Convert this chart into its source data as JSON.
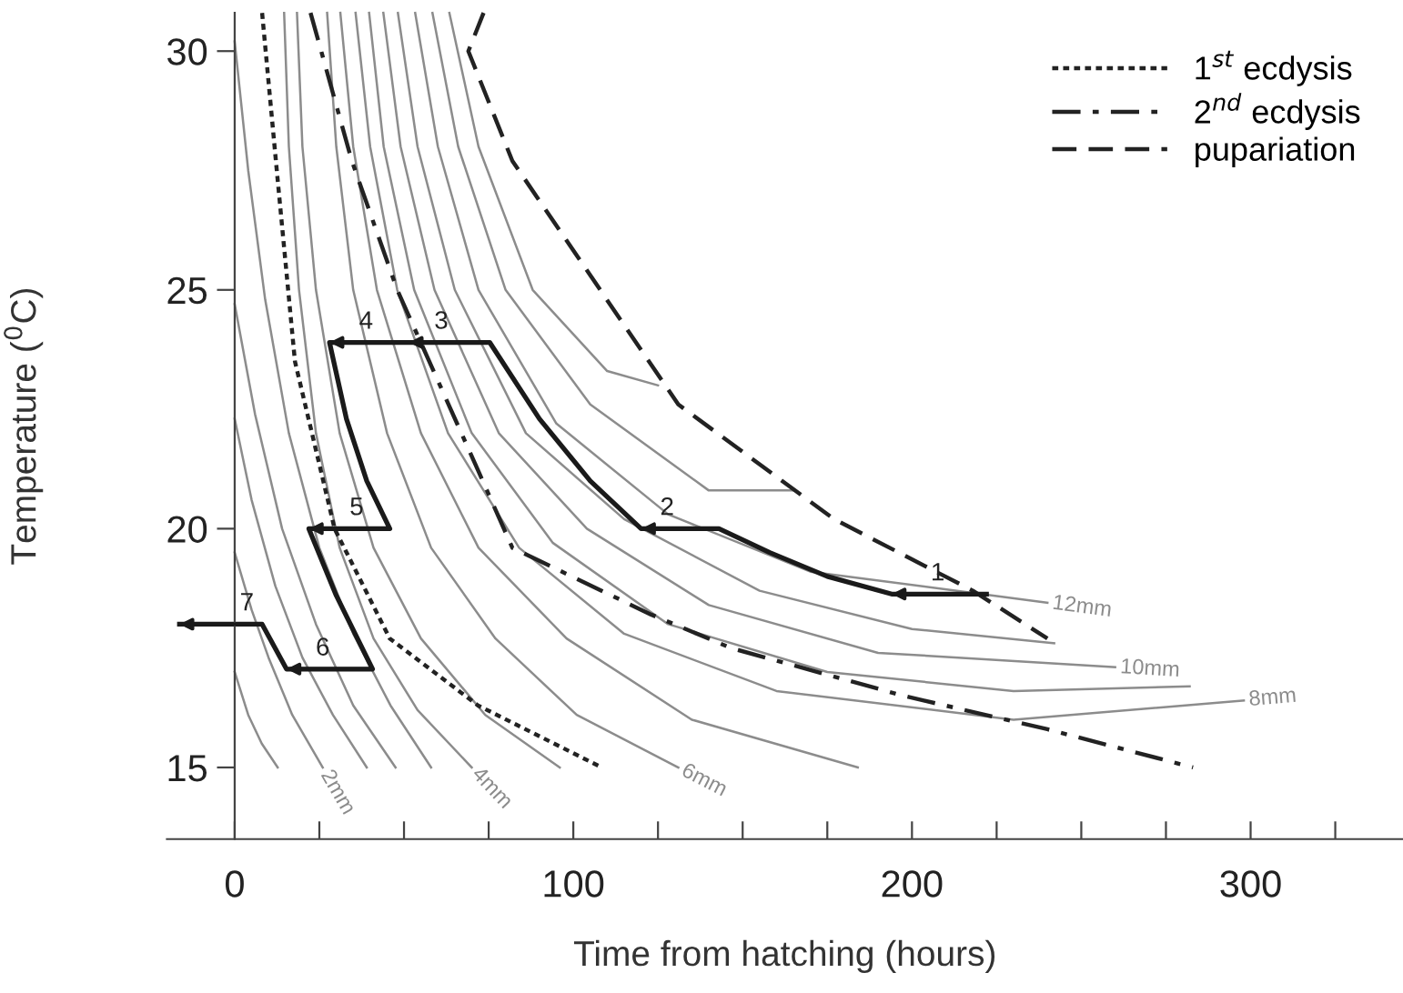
{
  "chart_data": {
    "type": "line",
    "xlabel": "Time from hatching (hours)",
    "ylabel": "Temperature ($^{0}$C)",
    "xlim": [
      -20,
      345
    ],
    "ylim": [
      13.5,
      30.8
    ],
    "xticks": [
      0,
      {
        "value": 25,
        "label": null
      },
      {
        "value": 50,
        "label": null
      },
      {
        "value": 75,
        "label": null
      },
      100,
      {
        "value": 125,
        "label": null
      },
      {
        "value": 150,
        "label": null
      },
      {
        "value": 175,
        "label": null
      },
      200,
      {
        "value": 225,
        "label": null
      },
      {
        "value": 250,
        "label": null
      },
      {
        "value": 275,
        "label": null
      },
      300,
      {
        "value": 325,
        "label": null
      }
    ],
    "yticks": [
      15,
      20,
      25,
      30
    ],
    "grid": false,
    "legend": "top right",
    "marker": "none",
    "series": [
      {
        "color": "#8c8c8c",
        "line_style": "solid",
        "x": [
          0,
          4,
          8,
          12.7
        ],
        "values": [
          17.0,
          16.1,
          15.5,
          15.0
        ]
      },
      {
        "name": "2mm",
        "color": "#8c8c8c",
        "line_style": "solid",
        "x": [
          0,
          5,
          10,
          17,
          26
        ],
        "values": [
          19.5,
          18.3,
          17.3,
          16.1,
          15.0
        ]
      },
      {
        "color": "#8c8c8c",
        "line_style": "solid",
        "x": [
          0,
          5,
          12,
          20,
          29,
          39
        ],
        "values": [
          22.3,
          20.6,
          18.8,
          17.3,
          16.1,
          15.0
        ]
      },
      {
        "color": "#8c8c8c",
        "line_style": "solid",
        "x": [
          0,
          6,
          14,
          24,
          35,
          47.5
        ],
        "values": [
          24.7,
          22.4,
          20.0,
          18.0,
          16.3,
          15.0
        ]
      },
      {
        "color": "#8c8c8c",
        "line_style": "solid",
        "x": [
          0,
          4,
          9,
          16,
          25,
          35,
          46,
          58
        ],
        "values": [
          30.2,
          27.5,
          24.8,
          22.0,
          19.6,
          17.8,
          16.3,
          15.0
        ]
      },
      {
        "name": "4mm",
        "color": "#8c8c8c",
        "line_style": "solid",
        "x": [
          14.6,
          16,
          19,
          24,
          31,
          41,
          54,
          70
        ],
        "values": [
          30.8,
          28,
          25,
          22,
          19.6,
          17.7,
          16.2,
          15.0
        ]
      },
      {
        "color": "#8c8c8c",
        "line_style": "solid",
        "x": [
          18.4,
          20,
          24,
          31,
          41,
          55,
          74,
          96
        ],
        "values": [
          30.8,
          28,
          25,
          22,
          19.6,
          17.7,
          16.1,
          15.0
        ]
      },
      {
        "name": "6mm",
        "color": "#8c8c8c",
        "line_style": "solid",
        "x": [
          27.3,
          30,
          35,
          45,
          58,
          77,
          101,
          131
        ],
        "values": [
          30.8,
          28,
          25,
          22,
          19.6,
          17.7,
          16.1,
          15.0
        ]
      },
      {
        "color": "#8c8c8c",
        "line_style": "solid",
        "x": [
          31.2,
          35,
          42,
          55,
          72,
          98,
          135,
          184
        ],
        "values": [
          30.8,
          28,
          25,
          22,
          19.6,
          17.7,
          16.0,
          15.0
        ]
      },
      {
        "name": "8mm",
        "color": "#8c8c8c",
        "line_style": "solid",
        "x": [
          35.7,
          40,
          48,
          63,
          84,
          115,
          160,
          230,
          298
        ],
        "values": [
          30.8,
          28,
          25,
          22,
          19.6,
          17.8,
          16.6,
          16.0,
          16.4
        ]
      },
      {
        "color": "#8c8c8c",
        "line_style": "solid",
        "x": [
          39.7,
          44,
          53,
          70,
          94,
          128,
          175,
          230,
          282
        ],
        "values": [
          30.8,
          28,
          25,
          22,
          19.7,
          18.0,
          17.0,
          16.6,
          16.7
        ]
      },
      {
        "name": "10mm",
        "color": "#8c8c8c",
        "line_style": "solid",
        "x": [
          43.9,
          49,
          59,
          78,
          104,
          140,
          190,
          260
        ],
        "values": [
          30.8,
          28,
          25,
          22,
          20,
          18.4,
          17.4,
          17.1
        ]
      },
      {
        "color": "#8c8c8c",
        "line_style": "solid",
        "x": [
          48.2,
          54,
          65,
          86,
          115,
          155,
          200,
          242
        ],
        "values": [
          30.8,
          28,
          25,
          22,
          20.2,
          18.7,
          17.9,
          17.6
        ]
      },
      {
        "name": "12mm",
        "color": "#8c8c8c",
        "line_style": "solid",
        "x": [
          53.3,
          60,
          72,
          95,
          128,
          170,
          240
        ],
        "values": [
          30.8,
          28,
          25,
          22.2,
          20.3,
          19.1,
          18.45
        ]
      },
      {
        "color": "#8c8c8c",
        "line_style": "solid",
        "x": [
          58.4,
          66,
          80,
          105,
          140,
          165
        ],
        "values": [
          30.8,
          28,
          25,
          22.6,
          20.8,
          20.8
        ]
      },
      {
        "color": "#8c8c8c",
        "line_style": "solid",
        "x": [
          63.4,
          72,
          88,
          110,
          125
        ],
        "values": [
          30.8,
          28,
          25,
          23.3,
          23.0
        ]
      },
      {
        "name": "1$^{st}$ ecdysis",
        "color": "#222222",
        "line_style": "dotted",
        "x": [
          8.1,
          12.7,
          17.8,
          29.5,
          45.8,
          71.8,
          108.4
        ],
        "values": [
          30.8,
          27.3,
          23.5,
          20.0,
          17.7,
          16.3,
          15.0
        ]
      },
      {
        "name": "2$^{nd}$ ecdysis",
        "color": "#222222",
        "line_style": "dashdot",
        "x": [
          22.4,
          34.6,
          48,
          72,
          82,
          123,
          146.6,
          197.5,
          240,
          283
        ],
        "values": [
          30.8,
          27.7,
          25.0,
          21.2,
          19.6,
          18.2,
          17.5,
          16.5,
          15.8,
          15.0
        ]
      },
      {
        "name": "pupariation",
        "color": "#222222",
        "line_style": "dashed",
        "x": [
          73.5,
          69,
          82,
          131,
          177,
          218,
          240
        ],
        "values": [
          30.8,
          30.0,
          27.7,
          22.6,
          20.2,
          18.7,
          17.7
        ]
      },
      {
        "color": "#1a1a1a",
        "line_style": "solid",
        "x": [
          222,
          194,
          175,
          158,
          143,
          120,
          105,
          90,
          75.3,
          51.4,
          28,
          33,
          39,
          45.8,
          21.9,
          30,
          40.7,
          15.3,
          8.1,
          -16.3
        ],
        "values": [
          18.63,
          18.63,
          19.0,
          19.5,
          20.0,
          20.0,
          21.0,
          22.3,
          23.9,
          23.9,
          23.9,
          22.3,
          21.0,
          20.0,
          20.0,
          18.6,
          17.06,
          17.06,
          18.0,
          18.0
        ]
      }
    ],
    "annotations": [
      {
        "text": "1",
        "x": 207.6,
        "y": 18.63
      },
      {
        "text": "2",
        "x": 127.7,
        "y": 20.0
      },
      {
        "text": "3",
        "x": 61,
        "y": 23.9
      },
      {
        "text": "4",
        "x": 38.8,
        "y": 23.9
      },
      {
        "text": "5",
        "x": 36,
        "y": 20.0
      },
      {
        "text": "6",
        "x": 26,
        "y": 17.06
      },
      {
        "text": "7",
        "x": 3.6,
        "y": 18.0
      }
    ]
  }
}
